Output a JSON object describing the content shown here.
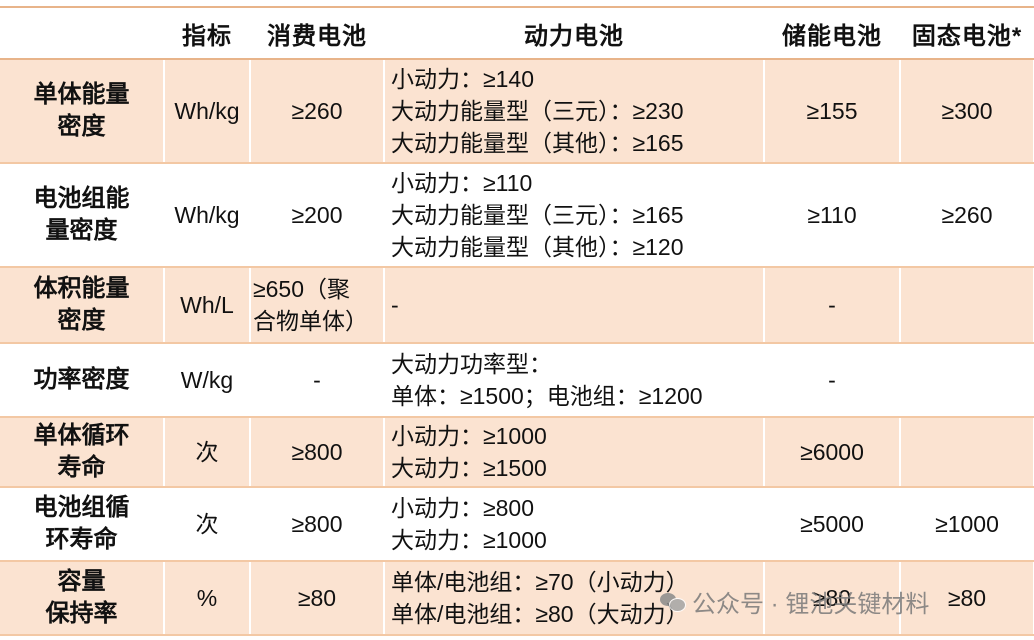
{
  "headers": [
    "",
    "指标",
    "消费电池",
    "动力电池",
    "储能电池",
    "固态电池*"
  ],
  "rows": [
    {
      "label": [
        "单体能量",
        "密度"
      ],
      "unit": "Wh/kg",
      "consumer": [
        "≥260"
      ],
      "power": [
        "小动力：≥140",
        "大动力能量型（三元）：≥230",
        "大动力能量型（其他）：≥165"
      ],
      "storage": "≥155",
      "solid": "≥300"
    },
    {
      "label": [
        "电池组能",
        "量密度"
      ],
      "unit": "Wh/kg",
      "consumer": [
        "≥200"
      ],
      "power": [
        "小动力：≥110",
        "大动力能量型（三元）：≥165",
        "大动力能量型（其他）：≥120"
      ],
      "storage": "≥110",
      "solid": "≥260"
    },
    {
      "label": [
        "体积能量",
        "密度"
      ],
      "unit": "Wh/L",
      "consumer": [
        "≥650（聚",
        "合物单体）"
      ],
      "power": [
        "-"
      ],
      "storage": "-",
      "solid": ""
    },
    {
      "label": [
        "功率密度"
      ],
      "unit": "W/kg",
      "consumer": [
        "-"
      ],
      "power": [
        "大动力功率型：",
        "单体：≥1500；电池组：≥1200"
      ],
      "storage": "-",
      "solid": ""
    },
    {
      "label": [
        "单体循环",
        "寿命"
      ],
      "unit": "次",
      "consumer": [
        "≥800"
      ],
      "power": [
        "小动力：≥1000",
        "大动力：≥1500"
      ],
      "storage": "≥6000",
      "solid": ""
    },
    {
      "label": [
        "电池组循",
        "环寿命"
      ],
      "unit": "次",
      "consumer": [
        "≥800"
      ],
      "power": [
        "小动力：≥800",
        "大动力：≥1000"
      ],
      "storage": "≥5000",
      "solid": "≥1000"
    },
    {
      "label": [
        "容量",
        "保持率"
      ],
      "unit": "%",
      "consumer": [
        "≥80"
      ],
      "power": [
        "单体/电池组：≥70（小动力）",
        "单体/电池组：≥80（大动力）"
      ],
      "storage": "≥80",
      "solid": "≥80"
    }
  ],
  "watermark": "公众号 · 锂池关键材料",
  "colors": {
    "shade": "#fbe3d1",
    "rule": "#e8b48a"
  }
}
